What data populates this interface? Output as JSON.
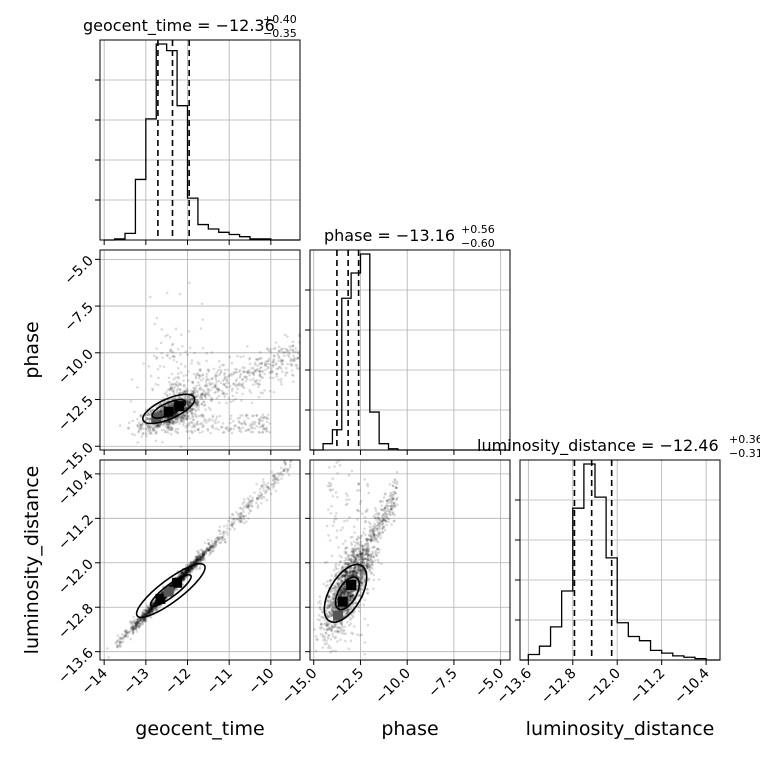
{
  "chart_data": {
    "type": "corner",
    "parameters": [
      "geocent_time",
      "phase",
      "luminosity_distance"
    ],
    "titles": [
      {
        "param": "geocent_time",
        "median": "−12.36",
        "plus": "+0.40",
        "minus": "−0.35"
      },
      {
        "param": "phase",
        "median": "−13.16",
        "plus": "+0.56",
        "minus": "−0.60"
      },
      {
        "param": "luminosity_distance",
        "median": "−12.46",
        "plus": "+0.36",
        "minus": "−0.31"
      }
    ],
    "ranges": {
      "geocent_time": [
        -14.1,
        -9.3
      ],
      "phase": [
        -15.2,
        -4.5
      ],
      "luminosity_distance": [
        -13.75,
        -10.15
      ]
    },
    "ticks": {
      "geocent_time": {
        "values": [
          -14,
          -13,
          -12,
          -11,
          -10
        ],
        "labels": [
          "−14",
          "−13",
          "−12",
          "−11",
          "−10"
        ]
      },
      "phase": {
        "values": [
          -15,
          -12.5,
          -10,
          -7.5,
          -5
        ],
        "labels": [
          "−15.0",
          "−12.5",
          "−10.0",
          "−7.5",
          "−5.0"
        ]
      },
      "luminosity_distance": {
        "values": [
          -13.6,
          -12.8,
          -12.0,
          -11.2,
          -10.4
        ],
        "labels": [
          "−13.6",
          "−12.8",
          "−12.0",
          "−11.2",
          "−10.4"
        ]
      }
    },
    "histograms": {
      "geocent_time": {
        "edges": [
          -14.0,
          -13.75,
          -13.5,
          -13.25,
          -13.0,
          -12.75,
          -12.5,
          -12.25,
          -12.0,
          -11.75,
          -11.5,
          -11.25,
          -11.0,
          -10.75,
          -10.5,
          -10.25,
          -10.0,
          -9.75,
          -9.5,
          -9.3
        ],
        "counts": [
          0,
          1,
          6,
          55,
          110,
          178,
          172,
          122,
          38,
          14,
          10,
          7,
          5,
          3,
          1,
          1,
          0,
          0,
          0
        ]
      },
      "phase": {
        "edges": [
          -15.2,
          -14.5,
          -14.0,
          -13.5,
          -13.0,
          -12.5,
          -12.0,
          -11.5,
          -11.0,
          -10.5,
          -10.0,
          -4.5
        ],
        "counts": [
          0,
          5,
          16,
          120,
          140,
          155,
          30,
          5,
          1,
          0,
          0
        ]
      },
      "luminosity_distance": {
        "edges": [
          -13.75,
          -13.6,
          -13.4,
          -13.2,
          -13.0,
          -12.8,
          -12.6,
          -12.4,
          -12.2,
          -12.0,
          -11.8,
          -11.6,
          -11.4,
          -11.2,
          -11.0,
          -10.8,
          -10.6,
          -10.4,
          -10.15
        ],
        "counts": [
          0,
          4,
          10,
          24,
          50,
          110,
          142,
          118,
          74,
          27,
          17,
          14,
          7,
          5,
          3,
          2,
          1,
          0
        ]
      }
    },
    "quantiles": {
      "geocent_time": [
        -12.71,
        -12.36,
        -11.96
      ],
      "phase": [
        -13.76,
        -13.16,
        -12.6
      ],
      "luminosity_distance": [
        -12.77,
        -12.46,
        -12.1
      ]
    },
    "grid": true
  }
}
